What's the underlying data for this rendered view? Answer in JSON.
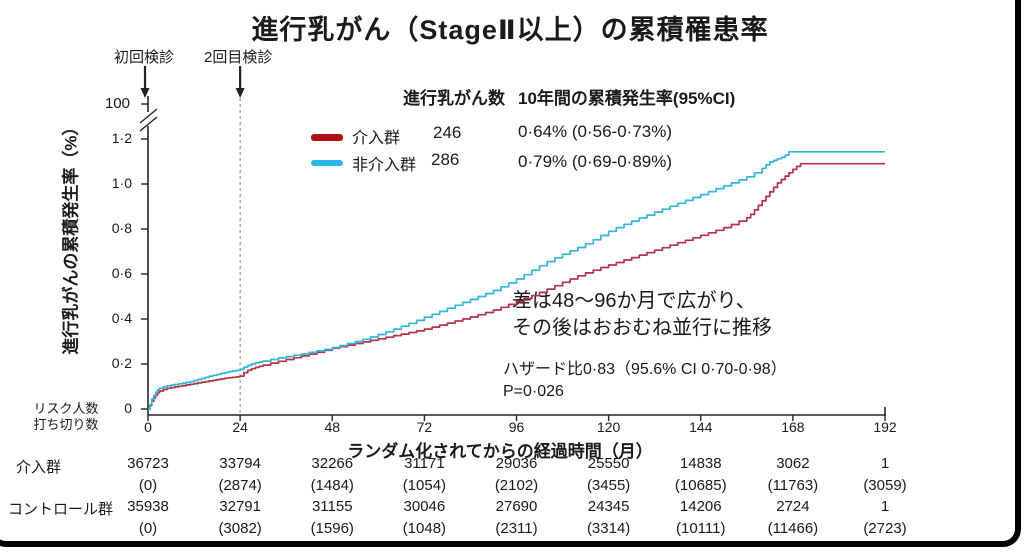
{
  "title": "進行乳がん（StageⅡ以上）の累積罹患率",
  "annotations": {
    "first_screening": "初回検診",
    "second_screening": "2回目検診",
    "gap_note": "差は48～96か月で広がり、\nその後はおおむね並行に推移",
    "hazard_note": "ハザード比0·83（95.6% CI 0·70-0·98）\nP=0·026"
  },
  "legend": {
    "count_header": "進行乳がん数",
    "rate_header": "10年間の累積発生率(95%CI)",
    "rows": [
      {
        "label": "介入群",
        "count": "246",
        "rate": "0·64% (0·56-0·73%)",
        "swatch_color": "#b01116"
      },
      {
        "label": "非介入群",
        "count": "286",
        "rate": "0·79% (0·69-0·89%)",
        "swatch_color": "#29b9e8"
      }
    ]
  },
  "risk_table": {
    "header": "リスク人数\n打ち切り数",
    "rows": [
      {
        "label": "介入群",
        "at_risk": [
          "36723",
          "33794",
          "32266",
          "31171",
          "29036",
          "25550",
          "14838",
          "3062",
          "1"
        ],
        "censored": [
          "(0)",
          "(2874)",
          "(1484)",
          "(1054)",
          "(2102)",
          "(3455)",
          "(10685)",
          "(11763)",
          "(3059)"
        ]
      },
      {
        "label": "コントロール群",
        "at_risk": [
          "35938",
          "32791",
          "31155",
          "30046",
          "27690",
          "24345",
          "14206",
          "2724",
          "1"
        ],
        "censored": [
          "(0)",
          "(3082)",
          "(1596)",
          "(1048)",
          "(2311)",
          "(3314)",
          "(10111)",
          "(11466)",
          "(2723)"
        ]
      }
    ]
  },
  "chart_data": {
    "type": "line",
    "title": "進行乳がん（StageⅡ以上）の累積罹患率",
    "xlabel": "ランダム化されてからの経過時間（月）",
    "ylabel": "進行乳がんの累積発生率（%）",
    "xlim": [
      0,
      192
    ],
    "ylim": [
      0,
      1.2
    ],
    "y_axis_break_label": "100",
    "x_ticks": [
      0,
      24,
      48,
      72,
      96,
      120,
      144,
      168,
      192
    ],
    "y_ticks": [
      0,
      0.2,
      0.4,
      0.6,
      0.8,
      1.0,
      1.2
    ],
    "y_tick_labels": [
      "0",
      "0·2",
      "0·4",
      "0·6",
      "0·8",
      "1·0",
      "1·2"
    ],
    "grid": false,
    "legend_position": "top-center",
    "screening_arrow_months": [
      0,
      24
    ],
    "second_screening_month": 24,
    "axis_color": "#262626",
    "dashed_line_color": "#999999",
    "series": [
      {
        "name": "介入群",
        "color": "#b2344c",
        "points": [
          [
            0,
            0
          ],
          [
            0.5,
            0.015
          ],
          [
            1,
            0.035
          ],
          [
            1.5,
            0.05
          ],
          [
            2,
            0.062
          ],
          [
            2.5,
            0.072
          ],
          [
            3,
            0.08
          ],
          [
            4,
            0.087
          ],
          [
            5,
            0.092
          ],
          [
            6,
            0.095
          ],
          [
            7,
            0.098
          ],
          [
            8,
            0.101
          ],
          [
            9,
            0.104
          ],
          [
            10,
            0.107
          ],
          [
            11,
            0.11
          ],
          [
            12,
            0.113
          ],
          [
            13,
            0.116
          ],
          [
            14,
            0.119
          ],
          [
            15,
            0.122
          ],
          [
            16,
            0.125
          ],
          [
            17,
            0.128
          ],
          [
            18,
            0.131
          ],
          [
            19,
            0.134
          ],
          [
            20,
            0.137
          ],
          [
            21,
            0.139
          ],
          [
            22,
            0.141
          ],
          [
            23,
            0.143
          ],
          [
            24,
            0.146
          ],
          [
            25,
            0.162
          ],
          [
            26,
            0.172
          ],
          [
            27,
            0.179
          ],
          [
            28,
            0.185
          ],
          [
            29,
            0.19
          ],
          [
            30,
            0.195
          ],
          [
            32,
            0.204
          ],
          [
            34,
            0.212
          ],
          [
            36,
            0.22
          ],
          [
            38,
            0.228
          ],
          [
            40,
            0.236
          ],
          [
            42,
            0.244
          ],
          [
            44,
            0.252
          ],
          [
            46,
            0.261
          ],
          [
            48,
            0.27
          ],
          [
            50,
            0.277
          ],
          [
            52,
            0.284
          ],
          [
            54,
            0.291
          ],
          [
            56,
            0.298
          ],
          [
            58,
            0.305
          ],
          [
            60,
            0.312
          ],
          [
            62,
            0.319
          ],
          [
            64,
            0.326
          ],
          [
            66,
            0.333
          ],
          [
            68,
            0.34
          ],
          [
            70,
            0.347
          ],
          [
            72,
            0.355
          ],
          [
            74,
            0.364
          ],
          [
            76,
            0.373
          ],
          [
            78,
            0.382
          ],
          [
            80,
            0.391
          ],
          [
            82,
            0.4
          ],
          [
            84,
            0.409
          ],
          [
            86,
            0.419
          ],
          [
            88,
            0.429
          ],
          [
            90,
            0.44
          ],
          [
            92,
            0.452
          ],
          [
            94,
            0.465
          ],
          [
            96,
            0.478
          ],
          [
            98,
            0.491
          ],
          [
            100,
            0.504
          ],
          [
            102,
            0.518
          ],
          [
            104,
            0.533
          ],
          [
            106,
            0.548
          ],
          [
            108,
            0.563
          ],
          [
            110,
            0.578
          ],
          [
            112,
            0.592
          ],
          [
            114,
            0.605
          ],
          [
            116,
            0.617
          ],
          [
            118,
            0.629
          ],
          [
            120,
            0.64
          ],
          [
            122,
            0.651
          ],
          [
            124,
            0.662
          ],
          [
            126,
            0.673
          ],
          [
            128,
            0.684
          ],
          [
            130,
            0.695
          ],
          [
            132,
            0.706
          ],
          [
            134,
            0.717
          ],
          [
            136,
            0.728
          ],
          [
            138,
            0.739
          ],
          [
            140,
            0.75
          ],
          [
            142,
            0.761
          ],
          [
            144,
            0.772
          ],
          [
            146,
            0.783
          ],
          [
            148,
            0.794
          ],
          [
            150,
            0.806
          ],
          [
            152,
            0.82
          ],
          [
            154,
            0.835
          ],
          [
            156,
            0.85
          ],
          [
            157,
            0.865
          ],
          [
            158,
            0.885
          ],
          [
            159,
            0.905
          ],
          [
            160,
            0.925
          ],
          [
            161,
            0.945
          ],
          [
            162,
            0.965
          ],
          [
            163,
            0.985
          ],
          [
            164,
            1.005
          ],
          [
            165,
            1.02
          ],
          [
            166,
            1.035
          ],
          [
            167,
            1.05
          ],
          [
            168,
            1.065
          ],
          [
            169,
            1.078
          ],
          [
            170,
            1.09
          ],
          [
            192,
            1.09
          ]
        ]
      },
      {
        "name": "非介入群",
        "color": "#35b6d8",
        "points": [
          [
            0,
            0
          ],
          [
            0.5,
            0.02
          ],
          [
            1,
            0.045
          ],
          [
            1.5,
            0.06
          ],
          [
            2,
            0.075
          ],
          [
            2.5,
            0.085
          ],
          [
            3,
            0.092
          ],
          [
            4,
            0.098
          ],
          [
            5,
            0.103
          ],
          [
            6,
            0.106
          ],
          [
            7,
            0.109
          ],
          [
            8,
            0.112
          ],
          [
            9,
            0.115
          ],
          [
            10,
            0.118
          ],
          [
            11,
            0.122
          ],
          [
            12,
            0.126
          ],
          [
            13,
            0.131
          ],
          [
            14,
            0.136
          ],
          [
            15,
            0.141
          ],
          [
            16,
            0.146
          ],
          [
            17,
            0.15
          ],
          [
            18,
            0.154
          ],
          [
            19,
            0.158
          ],
          [
            20,
            0.162
          ],
          [
            21,
            0.166
          ],
          [
            22,
            0.169
          ],
          [
            23,
            0.172
          ],
          [
            24,
            0.176
          ],
          [
            25,
            0.186
          ],
          [
            26,
            0.194
          ],
          [
            27,
            0.2
          ],
          [
            28,
            0.205
          ],
          [
            29,
            0.209
          ],
          [
            30,
            0.213
          ],
          [
            32,
            0.22
          ],
          [
            34,
            0.227
          ],
          [
            36,
            0.233
          ],
          [
            38,
            0.239
          ],
          [
            40,
            0.245
          ],
          [
            42,
            0.252
          ],
          [
            44,
            0.258
          ],
          [
            46,
            0.265
          ],
          [
            48,
            0.273
          ],
          [
            50,
            0.282
          ],
          [
            52,
            0.291
          ],
          [
            54,
            0.3
          ],
          [
            56,
            0.31
          ],
          [
            58,
            0.32
          ],
          [
            60,
            0.331
          ],
          [
            62,
            0.343
          ],
          [
            64,
            0.355
          ],
          [
            66,
            0.368
          ],
          [
            68,
            0.381
          ],
          [
            70,
            0.394
          ],
          [
            72,
            0.408
          ],
          [
            74,
            0.421
          ],
          [
            76,
            0.434
          ],
          [
            78,
            0.448
          ],
          [
            80,
            0.461
          ],
          [
            82,
            0.474
          ],
          [
            84,
            0.487
          ],
          [
            86,
            0.5
          ],
          [
            88,
            0.513
          ],
          [
            90,
            0.527
          ],
          [
            92,
            0.543
          ],
          [
            94,
            0.56
          ],
          [
            96,
            0.578
          ],
          [
            98,
            0.597
          ],
          [
            100,
            0.617
          ],
          [
            102,
            0.637
          ],
          [
            104,
            0.655
          ],
          [
            106,
            0.672
          ],
          [
            108,
            0.688
          ],
          [
            110,
            0.703
          ],
          [
            112,
            0.718
          ],
          [
            114,
            0.734
          ],
          [
            116,
            0.752
          ],
          [
            118,
            0.771
          ],
          [
            120,
            0.79
          ],
          [
            122,
            0.806
          ],
          [
            124,
            0.821
          ],
          [
            126,
            0.835
          ],
          [
            128,
            0.849
          ],
          [
            130,
            0.862
          ],
          [
            132,
            0.875
          ],
          [
            134,
            0.888
          ],
          [
            136,
            0.901
          ],
          [
            138,
            0.914
          ],
          [
            140,
            0.927
          ],
          [
            142,
            0.94
          ],
          [
            144,
            0.953
          ],
          [
            146,
            0.966
          ],
          [
            148,
            0.979
          ],
          [
            150,
            0.992
          ],
          [
            152,
            1.005
          ],
          [
            154,
            1.018
          ],
          [
            156,
            1.032
          ],
          [
            158,
            1.05
          ],
          [
            160,
            1.07
          ],
          [
            161,
            1.085
          ],
          [
            162,
            1.098
          ],
          [
            163,
            1.105
          ],
          [
            164,
            1.112
          ],
          [
            165,
            1.118
          ],
          [
            166,
            1.128
          ],
          [
            167,
            1.143
          ],
          [
            192,
            1.143
          ]
        ]
      }
    ]
  }
}
